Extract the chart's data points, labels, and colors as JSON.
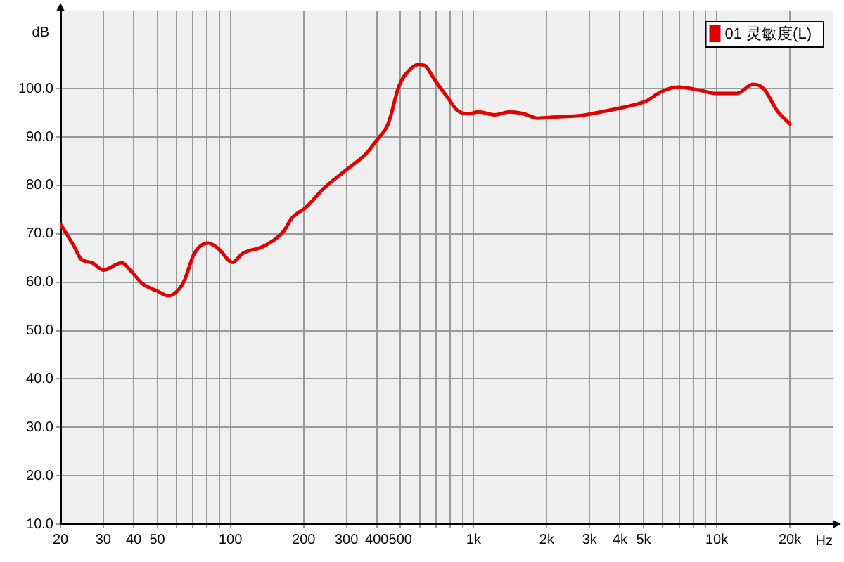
{
  "chart_data": {
    "type": "line",
    "xlabel": "Hz",
    "ylabel": "dB",
    "log": "x",
    "grid": true,
    "legend": "top right",
    "marker": "none",
    "line_style": "solid",
    "xlim": [
      20,
      30000
    ],
    "ylim": [
      10,
      116
    ],
    "xticks": [
      20,
      30,
      40,
      50,
      {
        "value": 60,
        "label": null
      },
      {
        "value": 70,
        "label": null
      },
      {
        "value": 80,
        "label": null
      },
      {
        "value": 90,
        "label": null
      },
      100,
      200,
      300,
      400,
      500,
      {
        "value": 600,
        "label": null
      },
      {
        "value": 700,
        "label": null
      },
      {
        "value": 800,
        "label": null
      },
      {
        "value": 900,
        "label": null
      },
      {
        "value": 1000,
        "label": "1k"
      },
      {
        "value": 2000,
        "label": "2k"
      },
      {
        "value": 3000,
        "label": "3k"
      },
      {
        "value": 4000,
        "label": "4k"
      },
      {
        "value": 5000,
        "label": "5k"
      },
      {
        "value": 6000,
        "label": null
      },
      {
        "value": 7000,
        "label": null
      },
      {
        "value": 8000,
        "label": null
      },
      {
        "value": 9000,
        "label": null
      },
      {
        "value": 10000,
        "label": "10k"
      },
      {
        "value": 20000,
        "label": "20k"
      }
    ],
    "yticks": [
      {
        "value": 10,
        "label": "10.0"
      },
      {
        "value": 20,
        "label": "20.0"
      },
      {
        "value": 30,
        "label": "30.0"
      },
      {
        "value": 40,
        "label": "40.0"
      },
      {
        "value": 50,
        "label": "50.0"
      },
      {
        "value": 60,
        "label": "60.0"
      },
      {
        "value": 70,
        "label": "70.0"
      },
      {
        "value": 80,
        "label": "80.0"
      },
      {
        "value": 90,
        "label": "90.0"
      },
      {
        "value": 100,
        "label": "100.0"
      }
    ],
    "series": [
      {
        "name": "01 灵敏度(L)",
        "color": "#e00000",
        "x": [
          20,
          22.7,
          24.3,
          27,
          30,
          35.8,
          38.7,
          43.4,
          46.3,
          49.9,
          55.3,
          59.4,
          64.6,
          71,
          81,
          89,
          102,
          112,
          138,
          166,
          178,
          206,
          241,
          294,
          362,
          400,
          445,
          494,
          546,
          596,
          632,
          694,
          779,
          857,
          952,
          1050,
          1220,
          1410,
          1610,
          1830,
          2230,
          2720,
          3340,
          4110,
          5100,
          5940,
          6920,
          8480,
          9870,
          12100,
          14100,
          15600,
          17700,
          20000
        ],
        "values": [
          72,
          67.5,
          64.8,
          64,
          62.5,
          64,
          62.5,
          59.7,
          58.9,
          58.2,
          57.2,
          57.8,
          60.3,
          65.9,
          68.1,
          67,
          64.1,
          65.9,
          67.5,
          70.6,
          73.1,
          75.6,
          79.3,
          82.9,
          86.6,
          89.4,
          92.7,
          100.6,
          103.9,
          105,
          104.7,
          101.7,
          98.3,
          95.5,
          94.8,
          95.2,
          94.6,
          95.2,
          94.8,
          93.9,
          94.2,
          94.4,
          95.2,
          96.1,
          97.4,
          99.4,
          100.3,
          99.7,
          99,
          99,
          100.9,
          100,
          95.5,
          92.7
        ]
      }
    ]
  }
}
